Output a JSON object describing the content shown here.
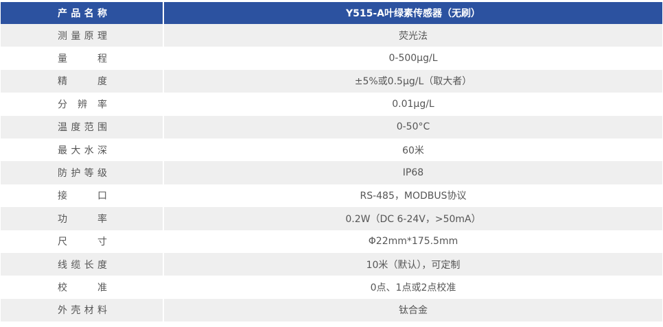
{
  "header": {
    "label": "产品名称",
    "value": "Y515-A叶绿素传感器（无刷）"
  },
  "rows": [
    {
      "label": "测量原理",
      "value": "荧光法"
    },
    {
      "label": "量程",
      "value": "0-500μg/L"
    },
    {
      "label": "精度",
      "value": "±5%或0.5μg/L（取大者）"
    },
    {
      "label": "分辨率",
      "value": "0.01μg/L"
    },
    {
      "label": "温度范围",
      "value": "0-50°C"
    },
    {
      "label": "最大水深",
      "value": "60米"
    },
    {
      "label": "防护等级",
      "value": "IP68"
    },
    {
      "label": "接口",
      "value": "RS-485，MODBUS协议"
    },
    {
      "label": "功率",
      "value": "0.2W（DC 6-24V，>50mA）"
    },
    {
      "label": "尺寸",
      "value": "Φ22mm*175.5mm"
    },
    {
      "label": "线缆长度",
      "value": "10米（默认），可定制"
    },
    {
      "label": "校准",
      "value": "0点、1点或2点校准"
    },
    {
      "label": "外壳材料",
      "value": "钛合金"
    }
  ],
  "colors": {
    "header_bg": "#2c52a0",
    "stripe": "#efefef",
    "text": "#555555"
  }
}
